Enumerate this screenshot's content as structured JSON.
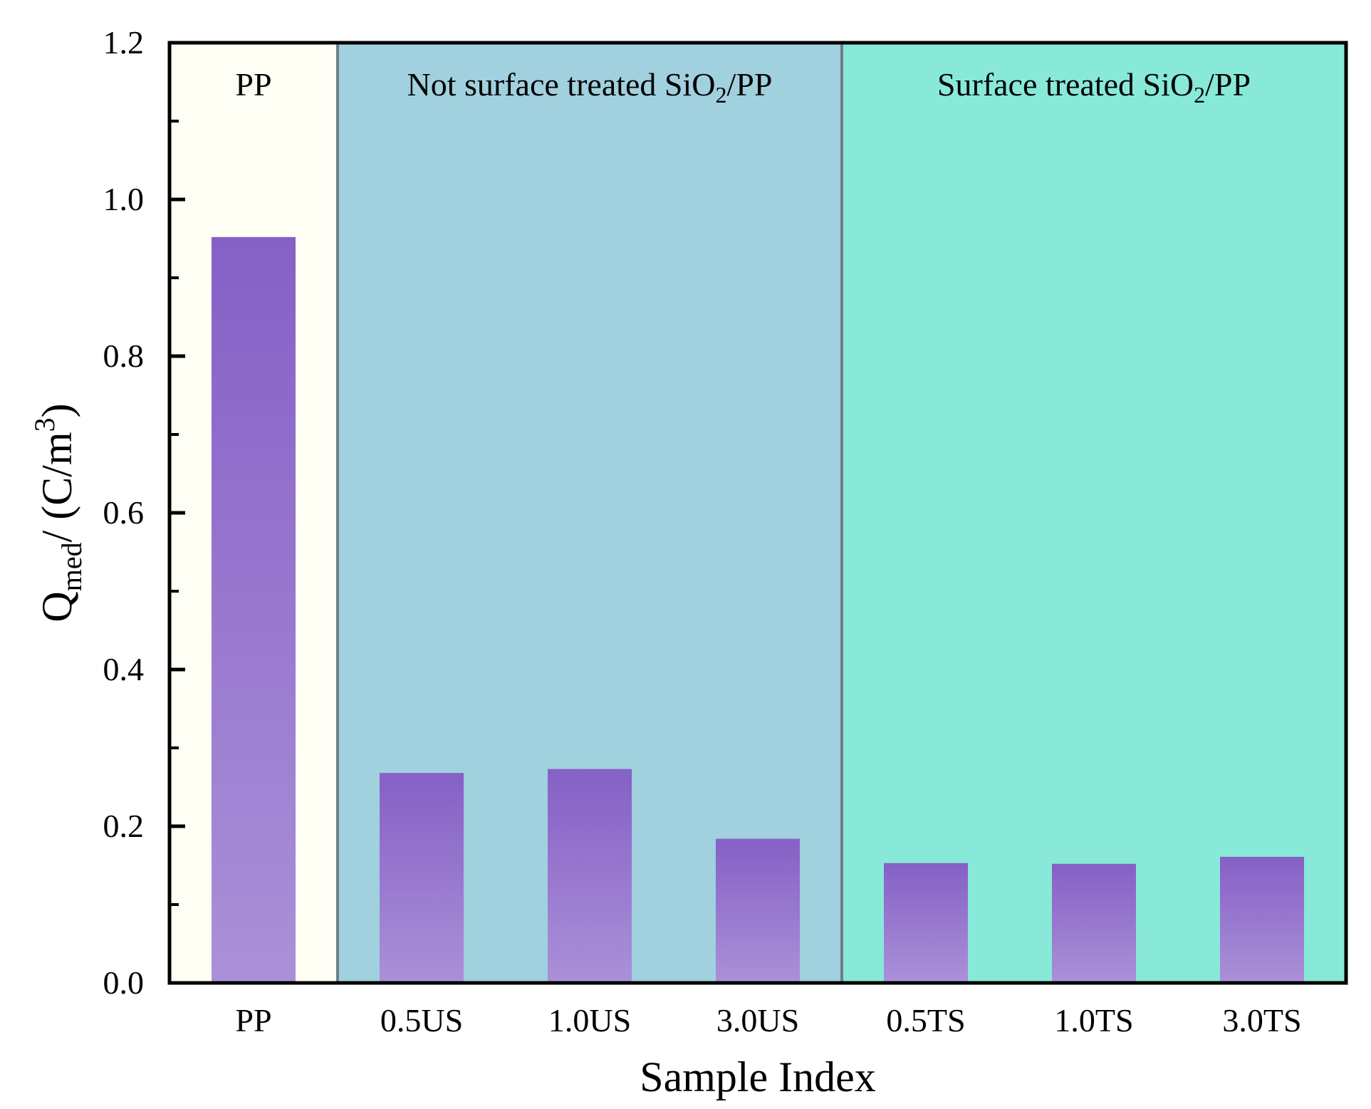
{
  "chart_data": {
    "type": "bar",
    "title": "",
    "xlabel": "Sample Index",
    "ylabel": {
      "main": "Q",
      "sub": "med",
      "rest": "/ (C/m",
      "sup": "3",
      "close": ")"
    },
    "ylim": [
      0,
      1.2
    ],
    "yticks": [
      "0.0",
      "0.2",
      "0.4",
      "0.6",
      "0.8",
      "1.0",
      "1.2"
    ],
    "ytick_values": [
      0,
      0.2,
      0.4,
      0.6,
      0.8,
      1.0,
      1.2
    ],
    "categories": [
      "PP",
      "0.5US",
      "1.0US",
      "3.0US",
      "0.5TS",
      "1.0TS",
      "3.0TS"
    ],
    "values": [
      0.952,
      0.268,
      0.273,
      0.184,
      0.153,
      0.152,
      0.161
    ],
    "regions": [
      {
        "label": "PP",
        "label_sub": "",
        "label_rest": "",
        "start_index": 0,
        "end_index": 0,
        "color": "#fffef4"
      },
      {
        "label": "Not surface treated SiO",
        "label_sub": "2",
        "label_rest": "/PP",
        "start_index": 1,
        "end_index": 3,
        "color": "#a1d0de"
      },
      {
        "label": "Surface treated SiO",
        "label_sub": "2",
        "label_rest": "/PP",
        "start_index": 4,
        "end_index": 6,
        "color": "#88e9d9"
      }
    ],
    "bar_color_top": "#8560c6",
    "bar_color_bottom": "#ab90d8",
    "divider_color": "#6f7f84",
    "grid": false,
    "legend": "none"
  }
}
